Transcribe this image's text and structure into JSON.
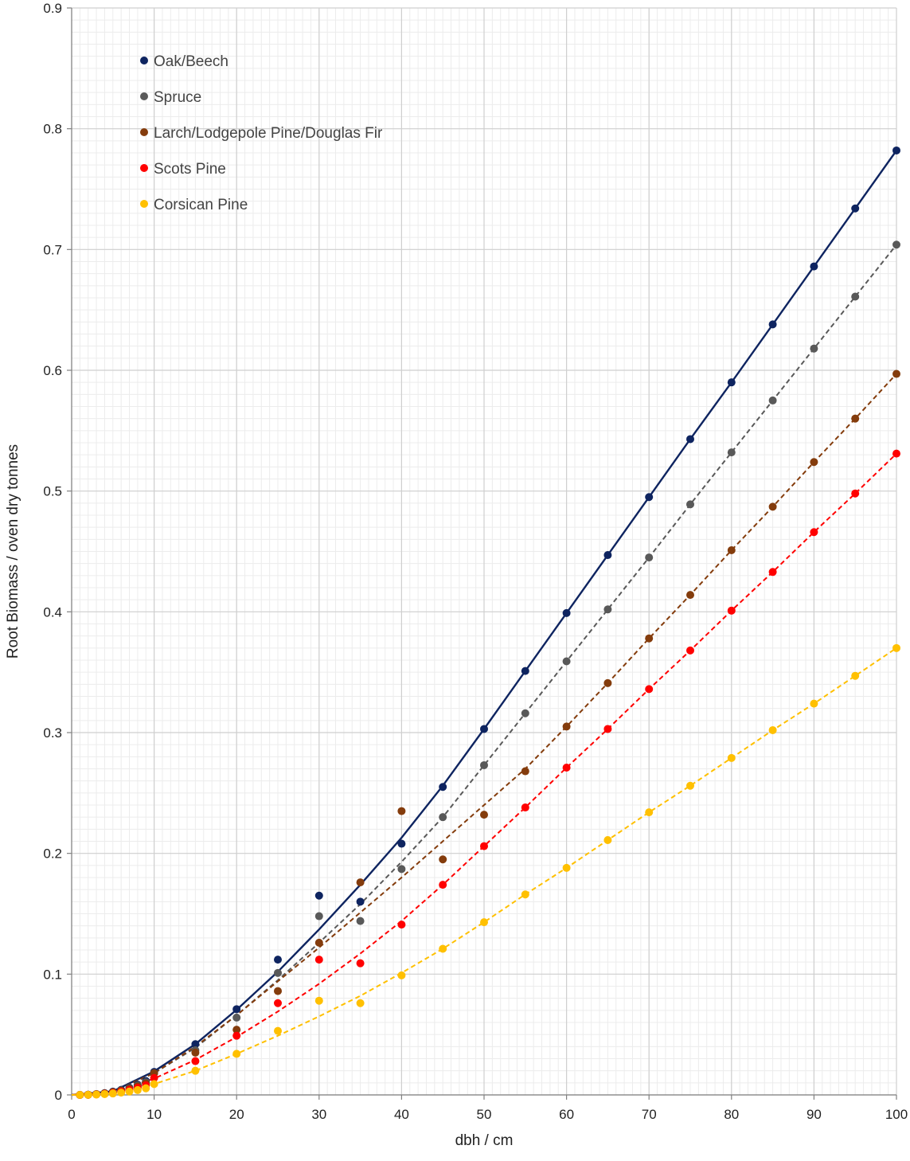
{
  "chart_data": {
    "type": "scatter",
    "title": "",
    "xlabel": "dbh / cm",
    "ylabel": "Root Biomass  / oven dry tonnes",
    "xlim": [
      0,
      100
    ],
    "ylim": [
      0,
      0.9
    ],
    "x_ticks": [
      "0",
      "10",
      "20",
      "30",
      "40",
      "50",
      "60",
      "70",
      "80",
      "90",
      "100"
    ],
    "y_ticks": [
      "0",
      "0.1",
      "0.2",
      "0.3",
      "0.4",
      "0.5",
      "0.6",
      "0.7",
      "0.8",
      "0.9"
    ],
    "grid": true,
    "legend_position": "top-left",
    "series": [
      {
        "name": "Oak/Beech",
        "color": "#0e2460",
        "line_style": "solid",
        "x": [
          1,
          2,
          3,
          4,
          5,
          6,
          7,
          8,
          9,
          10,
          15,
          20,
          25,
          30,
          35,
          40,
          45,
          50,
          55,
          60,
          65,
          70,
          75,
          80,
          85,
          90,
          95,
          100
        ],
        "values": [
          0.0,
          0.0002,
          0.0007,
          0.0015,
          0.0027,
          0.0042,
          0.006,
          0.0085,
          0.0115,
          0.019,
          0.042,
          0.071,
          0.112,
          0.165,
          0.16,
          0.208,
          0.255,
          0.303,
          0.351,
          0.399,
          0.447,
          0.495,
          0.543,
          0.59,
          0.638,
          0.686,
          0.734,
          0.782
        ],
        "fit": [
          [
            0,
            0
          ],
          [
            5,
            0.003
          ],
          [
            10,
            0.0195
          ],
          [
            15,
            0.042
          ],
          [
            20,
            0.0705
          ],
          [
            25,
            0.102
          ],
          [
            30,
            0.137
          ],
          [
            35,
            0.174
          ],
          [
            40,
            0.213
          ],
          [
            45,
            0.256
          ],
          [
            50,
            0.303
          ],
          [
            55,
            0.351
          ],
          [
            60,
            0.399
          ],
          [
            65,
            0.447
          ],
          [
            70,
            0.495
          ],
          [
            75,
            0.543
          ],
          [
            80,
            0.59
          ],
          [
            85,
            0.638
          ],
          [
            90,
            0.686
          ],
          [
            95,
            0.734
          ],
          [
            100,
            0.782
          ]
        ]
      },
      {
        "name": "Spruce",
        "color": "#595959",
        "line_style": "dashed",
        "x": [
          1,
          2,
          3,
          4,
          5,
          6,
          7,
          8,
          9,
          10,
          15,
          20,
          25,
          30,
          35,
          40,
          45,
          50,
          55,
          60,
          65,
          70,
          75,
          80,
          85,
          90,
          95,
          100
        ],
        "values": [
          0.0,
          0.0002,
          0.0006,
          0.0013,
          0.0024,
          0.0038,
          0.0055,
          0.0078,
          0.0105,
          0.018,
          0.037,
          0.064,
          0.101,
          0.148,
          0.144,
          0.187,
          0.23,
          0.273,
          0.316,
          0.359,
          0.402,
          0.445,
          0.489,
          0.532,
          0.575,
          0.618,
          0.661,
          0.704
        ],
        "fit": [
          [
            0,
            0
          ],
          [
            5,
            0.003
          ],
          [
            10,
            0.018
          ],
          [
            15,
            0.039
          ],
          [
            20,
            0.066
          ],
          [
            25,
            0.095
          ],
          [
            30,
            0.126
          ],
          [
            35,
            0.158
          ],
          [
            40,
            0.193
          ],
          [
            45,
            0.23
          ],
          [
            50,
            0.273
          ],
          [
            55,
            0.316
          ],
          [
            60,
            0.359
          ],
          [
            65,
            0.402
          ],
          [
            70,
            0.445
          ],
          [
            75,
            0.489
          ],
          [
            80,
            0.532
          ],
          [
            85,
            0.575
          ],
          [
            90,
            0.618
          ],
          [
            95,
            0.661
          ],
          [
            100,
            0.704
          ]
        ]
      },
      {
        "name": "Larch/Lodgepole Pine/Douglas Fir",
        "color": "#843c0c",
        "line_style": "dashed",
        "x": [
          1,
          2,
          3,
          4,
          5,
          6,
          7,
          8,
          9,
          10,
          15,
          20,
          25,
          30,
          35,
          40,
          45,
          50,
          55,
          60,
          65,
          70,
          75,
          80,
          85,
          90,
          95,
          100
        ],
        "values": [
          0.0,
          0.0002,
          0.0006,
          0.0012,
          0.0022,
          0.0035,
          0.005,
          0.007,
          0.0095,
          0.018,
          0.035,
          0.054,
          0.086,
          0.126,
          0.176,
          0.235,
          0.195,
          0.232,
          0.268,
          0.305,
          0.341,
          0.378,
          0.414,
          0.451,
          0.487,
          0.524,
          0.56,
          0.597
        ],
        "fit": [
          [
            0,
            0
          ],
          [
            5,
            0.003
          ],
          [
            10,
            0.018
          ],
          [
            15,
            0.04
          ],
          [
            20,
            0.066
          ],
          [
            25,
            0.094
          ],
          [
            30,
            0.122
          ],
          [
            35,
            0.151
          ],
          [
            40,
            0.18
          ],
          [
            45,
            0.21
          ],
          [
            50,
            0.24
          ],
          [
            55,
            0.27
          ],
          [
            60,
            0.305
          ],
          [
            65,
            0.341
          ],
          [
            70,
            0.378
          ],
          [
            75,
            0.414
          ],
          [
            80,
            0.451
          ],
          [
            85,
            0.487
          ],
          [
            90,
            0.524
          ],
          [
            95,
            0.56
          ],
          [
            100,
            0.597
          ]
        ]
      },
      {
        "name": "Scots Pine",
        "color": "#ff0000",
        "line_style": "dashed",
        "x": [
          1,
          2,
          3,
          4,
          5,
          6,
          7,
          8,
          9,
          10,
          15,
          20,
          25,
          30,
          35,
          40,
          45,
          50,
          55,
          60,
          65,
          70,
          75,
          80,
          85,
          90,
          95,
          100
        ],
        "values": [
          0.0,
          0.0001,
          0.0004,
          0.0009,
          0.0017,
          0.0028,
          0.0042,
          0.006,
          0.008,
          0.014,
          0.028,
          0.049,
          0.076,
          0.112,
          0.109,
          0.141,
          0.174,
          0.206,
          0.238,
          0.271,
          0.303,
          0.336,
          0.368,
          0.401,
          0.433,
          0.466,
          0.498,
          0.531
        ],
        "fit": [
          [
            0,
            0
          ],
          [
            5,
            0.002
          ],
          [
            10,
            0.0135
          ],
          [
            15,
            0.029
          ],
          [
            20,
            0.048
          ],
          [
            25,
            0.069
          ],
          [
            30,
            0.092
          ],
          [
            35,
            0.117
          ],
          [
            40,
            0.144
          ],
          [
            45,
            0.174
          ],
          [
            50,
            0.206
          ],
          [
            55,
            0.238
          ],
          [
            60,
            0.271
          ],
          [
            65,
            0.303
          ],
          [
            70,
            0.336
          ],
          [
            75,
            0.368
          ],
          [
            80,
            0.401
          ],
          [
            85,
            0.433
          ],
          [
            90,
            0.466
          ],
          [
            95,
            0.498
          ],
          [
            100,
            0.531
          ]
        ]
      },
      {
        "name": "Corsican Pine",
        "color": "#ffc000",
        "line_style": "dashed",
        "x": [
          1,
          2,
          3,
          4,
          5,
          6,
          7,
          8,
          9,
          10,
          15,
          20,
          25,
          30,
          35,
          40,
          45,
          50,
          55,
          60,
          65,
          70,
          75,
          80,
          85,
          90,
          95,
          100
        ],
        "values": [
          0.0,
          0.0001,
          0.0003,
          0.0007,
          0.0012,
          0.0019,
          0.0028,
          0.004,
          0.0055,
          0.009,
          0.02,
          0.034,
          0.053,
          0.078,
          0.076,
          0.099,
          0.121,
          0.143,
          0.166,
          0.188,
          0.211,
          0.234,
          0.256,
          0.279,
          0.302,
          0.324,
          0.347,
          0.37
        ],
        "fit": [
          [
            0,
            0
          ],
          [
            5,
            0.0015
          ],
          [
            10,
            0.009
          ],
          [
            15,
            0.02
          ],
          [
            20,
            0.034
          ],
          [
            25,
            0.049
          ],
          [
            30,
            0.065
          ],
          [
            35,
            0.082
          ],
          [
            40,
            0.101
          ],
          [
            45,
            0.121
          ],
          [
            50,
            0.143
          ],
          [
            55,
            0.166
          ],
          [
            60,
            0.188
          ],
          [
            65,
            0.211
          ],
          [
            70,
            0.234
          ],
          [
            75,
            0.256
          ],
          [
            80,
            0.279
          ],
          [
            85,
            0.302
          ],
          [
            90,
            0.324
          ],
          [
            95,
            0.347
          ],
          [
            100,
            0.37
          ]
        ]
      }
    ]
  }
}
